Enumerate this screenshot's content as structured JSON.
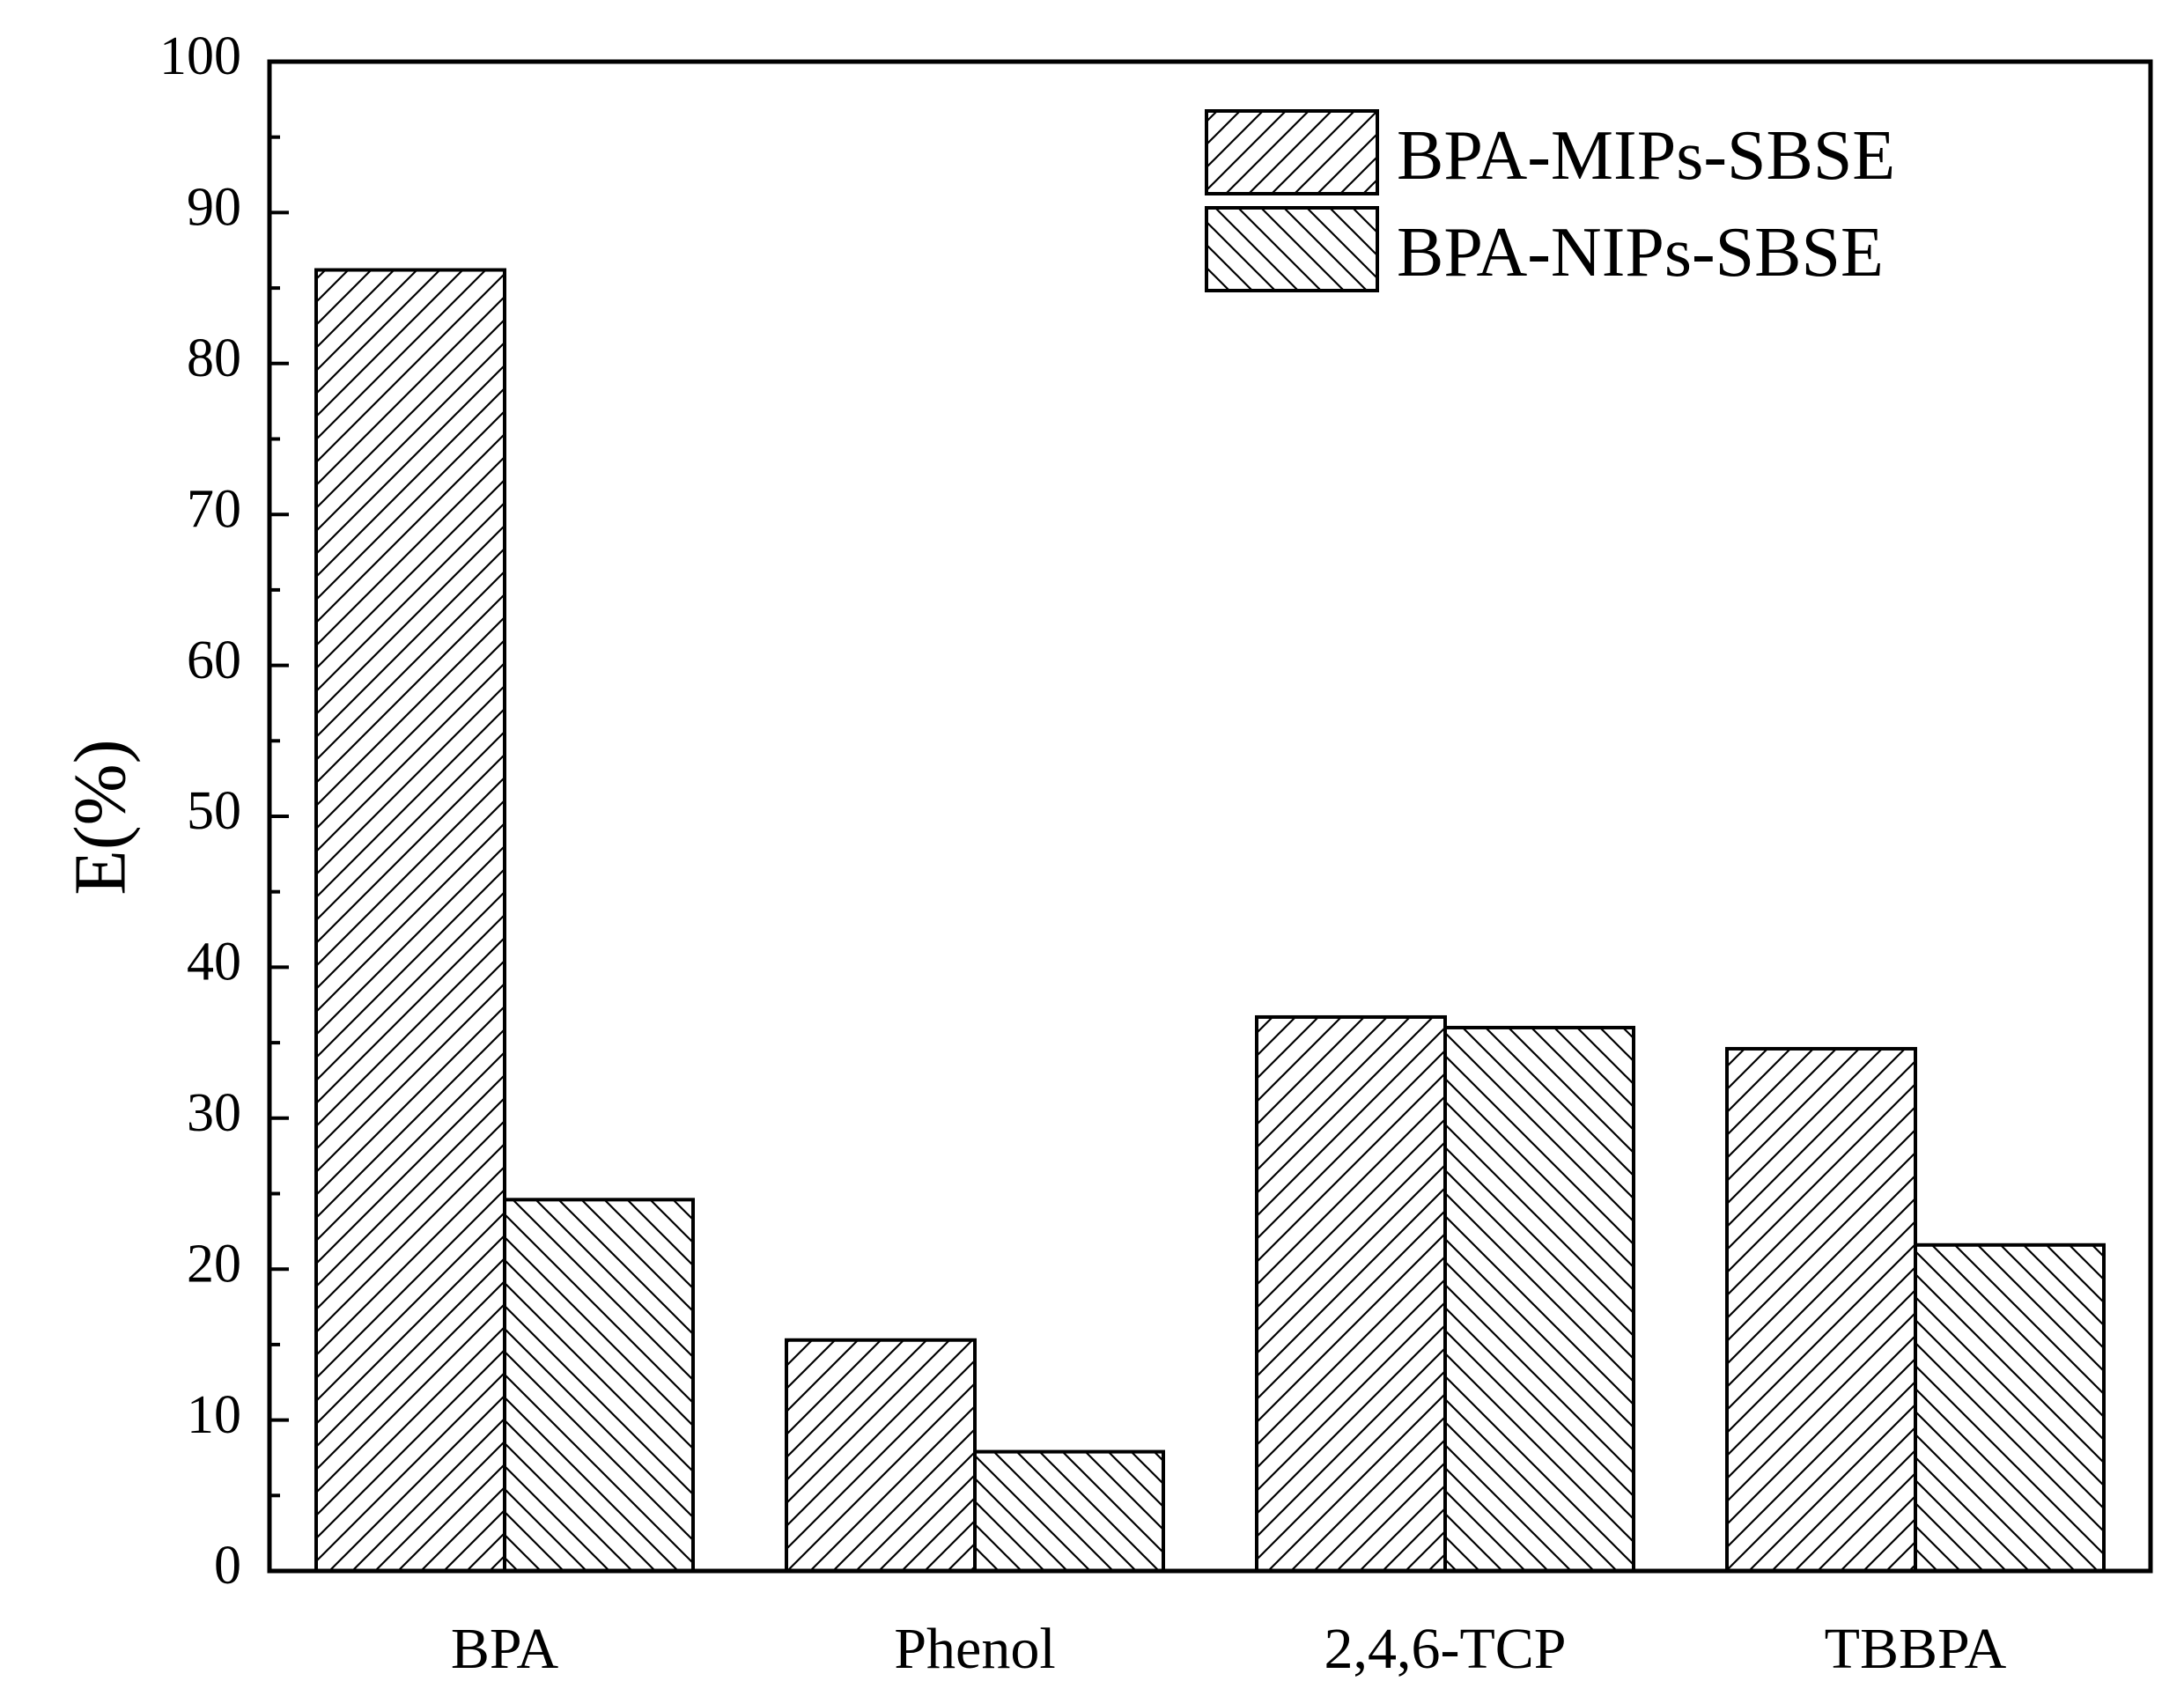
{
  "chart_data": {
    "type": "bar",
    "title": "",
    "xlabel": "",
    "ylabel": "E(%)",
    "ylim": [
      0,
      100
    ],
    "yticks": [
      0,
      10,
      20,
      30,
      40,
      50,
      60,
      70,
      80,
      90,
      100
    ],
    "categories": [
      "BPA",
      "Phenol",
      "2,4,6-TCP",
      "TBBPA"
    ],
    "series": [
      {
        "name": "BPA-MIPs-SBSE",
        "values": [
          86.2,
          15.3,
          36.7,
          34.6
        ],
        "hatch": "forward-diagonal"
      },
      {
        "name": "BPA-NIPs-SBSE",
        "values": [
          24.6,
          7.9,
          36.0,
          21.6
        ],
        "hatch": "backward-diagonal"
      }
    ],
    "legend_position": "top-right",
    "grid": false,
    "colors": {
      "bar_fill": "#ffffff",
      "stroke": "#000000"
    }
  }
}
